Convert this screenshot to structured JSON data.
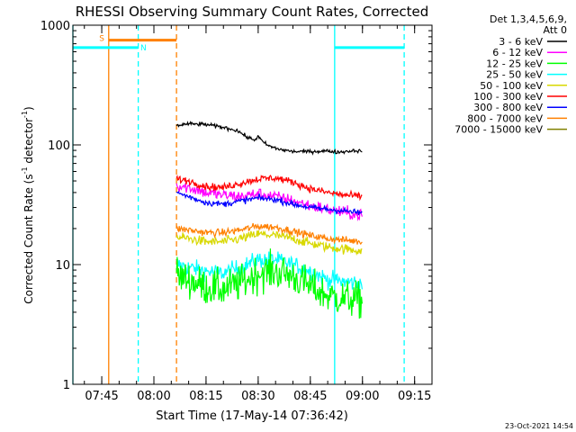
{
  "chart_data": {
    "type": "line",
    "title": "RHESSI Observing Summary Count Rates, Corrected",
    "xlabel": "Start Time (17-May-14 07:36:42)",
    "ylabel_parts": [
      "Corrected Count Rate (s",
      "-1",
      " detector",
      "-1",
      ")"
    ],
    "x_scale": "time",
    "x_range": [
      "07:36:42",
      "09:20:00"
    ],
    "x_ticks": [
      {
        "t": "07:45",
        "label": "07:45"
      },
      {
        "t": "08:00",
        "label": "08:00"
      },
      {
        "t": "08:15",
        "label": "08:15"
      },
      {
        "t": "08:30",
        "label": "08:30"
      },
      {
        "t": "08:45",
        "label": "08:45"
      },
      {
        "t": "09:00",
        "label": "09:00"
      },
      {
        "t": "09:15",
        "label": "09:15"
      }
    ],
    "y_scale": "log",
    "y_range": [
      1,
      1000
    ],
    "y_ticks": [
      {
        "v": 1,
        "label": "1"
      },
      {
        "v": 10,
        "label": "10"
      },
      {
        "v": 100,
        "label": "100"
      },
      {
        "v": 1000,
        "label": "1000"
      }
    ],
    "legend": {
      "placement": "top-right",
      "header": [
        "Det 1,3,4,5,6,9,",
        "Att 0"
      ],
      "entries": [
        {
          "label": "3 - 6 keV",
          "color": "#000000"
        },
        {
          "label": "6 - 12 keV",
          "color": "#ff00ff"
        },
        {
          "label": "12 - 25 keV",
          "color": "#00ff00"
        },
        {
          "label": "25 - 50 keV",
          "color": "#00ffff"
        },
        {
          "label": "50 - 100 keV",
          "color": "#d8d800"
        },
        {
          "label": "100 - 300 keV",
          "color": "#ff0000"
        },
        {
          "label": "300 - 800 keV",
          "color": "#0000ff"
        },
        {
          "label": "800 - 7000 keV",
          "color": "#ff8000"
        },
        {
          "label": "7000 - 15000 keV",
          "color": "#808000"
        }
      ]
    },
    "series": [
      {
        "name": "3 - 6 keV",
        "color": "#000000",
        "noise": 0.015,
        "points": [
          [
            "08:06:30",
            145
          ],
          [
            "08:10",
            150
          ],
          [
            "08:15",
            148
          ],
          [
            "08:20",
            140
          ],
          [
            "08:24",
            132
          ],
          [
            "08:27",
            115
          ],
          [
            "08:29",
            110
          ],
          [
            "08:30",
            118
          ],
          [
            "08:31",
            108
          ],
          [
            "08:33",
            98
          ],
          [
            "08:36",
            92
          ],
          [
            "08:40",
            88
          ],
          [
            "08:45",
            88
          ],
          [
            "08:50",
            89
          ],
          [
            "08:53",
            87
          ],
          [
            "08:55",
            88
          ],
          [
            "08:58",
            90
          ],
          [
            "09:00",
            88
          ]
        ]
      },
      {
        "name": "6 - 12 keV",
        "color": "#ff00ff",
        "noise": 0.05,
        "points": [
          [
            "08:06:30",
            46
          ],
          [
            "08:10",
            44
          ],
          [
            "08:15",
            40
          ],
          [
            "08:20",
            38
          ],
          [
            "08:25",
            37
          ],
          [
            "08:30",
            39
          ],
          [
            "08:35",
            37
          ],
          [
            "08:40",
            34
          ],
          [
            "08:45",
            31
          ],
          [
            "08:50",
            29
          ],
          [
            "08:55",
            27
          ],
          [
            "09:00",
            26
          ]
        ]
      },
      {
        "name": "12 - 25 keV",
        "color": "#00ff00",
        "noise": 0.15,
        "points": [
          [
            "08:06:30",
            8
          ],
          [
            "08:10",
            7.5
          ],
          [
            "08:15",
            6.5
          ],
          [
            "08:20",
            6.2
          ],
          [
            "08:25",
            7
          ],
          [
            "08:30",
            8.5
          ],
          [
            "08:35",
            8.8
          ],
          [
            "08:40",
            8
          ],
          [
            "08:45",
            6.5
          ],
          [
            "08:50",
            5.5
          ],
          [
            "08:55",
            5.2
          ],
          [
            "09:00",
            5
          ]
        ]
      },
      {
        "name": "25 - 50 keV",
        "color": "#00ffff",
        "noise": 0.07,
        "points": [
          [
            "08:06:30",
            10
          ],
          [
            "08:10",
            9.5
          ],
          [
            "08:15",
            8.8
          ],
          [
            "08:20",
            8.5
          ],
          [
            "08:25",
            9.5
          ],
          [
            "08:30",
            11
          ],
          [
            "08:35",
            11
          ],
          [
            "08:40",
            10
          ],
          [
            "08:45",
            8.8
          ],
          [
            "08:50",
            7.5
          ],
          [
            "08:55",
            7.2
          ],
          [
            "09:00",
            7
          ]
        ]
      },
      {
        "name": "50 - 100 keV",
        "color": "#d8d800",
        "noise": 0.04,
        "points": [
          [
            "08:06:30",
            17
          ],
          [
            "08:10",
            16.5
          ],
          [
            "08:15",
            15.5
          ],
          [
            "08:20",
            15.5
          ],
          [
            "08:25",
            16.5
          ],
          [
            "08:30",
            18
          ],
          [
            "08:35",
            17.5
          ],
          [
            "08:40",
            16.5
          ],
          [
            "08:45",
            15
          ],
          [
            "08:50",
            14
          ],
          [
            "08:55",
            13.5
          ],
          [
            "09:00",
            13
          ]
        ]
      },
      {
        "name": "100 - 300 keV",
        "color": "#ff0000",
        "noise": 0.03,
        "points": [
          [
            "08:06:30",
            52
          ],
          [
            "08:10",
            50
          ],
          [
            "08:15",
            45
          ],
          [
            "08:20",
            44
          ],
          [
            "08:25",
            48
          ],
          [
            "08:30",
            52
          ],
          [
            "08:35",
            53
          ],
          [
            "08:40",
            49
          ],
          [
            "08:45",
            43
          ],
          [
            "08:50",
            40
          ],
          [
            "08:55",
            38
          ],
          [
            "09:00",
            37
          ]
        ]
      },
      {
        "name": "300 - 800 keV",
        "color": "#0000ff",
        "noise": 0.025,
        "points": [
          [
            "08:06:30",
            40
          ],
          [
            "08:10",
            37
          ],
          [
            "08:15",
            33
          ],
          [
            "08:20",
            32
          ],
          [
            "08:25",
            34
          ],
          [
            "08:30",
            36
          ],
          [
            "08:35",
            35
          ],
          [
            "08:40",
            32
          ],
          [
            "08:45",
            30
          ],
          [
            "08:50",
            29
          ],
          [
            "08:55",
            28
          ],
          [
            "09:00",
            27
          ]
        ]
      },
      {
        "name": "800 - 7000 keV",
        "color": "#ff8000",
        "noise": 0.03,
        "points": [
          [
            "08:06:30",
            20
          ],
          [
            "08:10",
            19.5
          ],
          [
            "08:15",
            18.5
          ],
          [
            "08:20",
            18.5
          ],
          [
            "08:25",
            19.5
          ],
          [
            "08:30",
            21
          ],
          [
            "08:35",
            20.5
          ],
          [
            "08:40",
            19
          ],
          [
            "08:45",
            17.5
          ],
          [
            "08:50",
            16.5
          ],
          [
            "08:55",
            16
          ],
          [
            "09:00",
            15.5
          ]
        ]
      },
      {
        "name": "7000 - 15000 keV",
        "color": "#808000",
        "noise": 0.0,
        "points": []
      }
    ],
    "markers": [
      {
        "type": "vline",
        "t": "07:36:42",
        "color": "#00ffff",
        "style": "solid"
      },
      {
        "type": "vline",
        "t": "07:47",
        "color": "#ff8000",
        "style": "solid"
      },
      {
        "type": "vline",
        "t": "07:55:30",
        "color": "#00ffff",
        "style": "dashed"
      },
      {
        "type": "vline",
        "t": "08:06:30",
        "color": "#ff8000",
        "style": "dashed"
      },
      {
        "type": "vline",
        "t": "08:52",
        "color": "#00ffff",
        "style": "solid"
      },
      {
        "type": "vline",
        "t": "09:12",
        "color": "#00ffff",
        "style": "dashed"
      }
    ],
    "bars": [
      {
        "t0": "07:36:42",
        "t1": "07:55:30",
        "y": 650,
        "color": "#00ffff"
      },
      {
        "t0": "07:47",
        "t1": "08:06:30",
        "y": 750,
        "color": "#ff8000"
      },
      {
        "t0": "08:52",
        "t1": "09:12",
        "y": 650,
        "color": "#00ffff"
      }
    ],
    "flags": [
      {
        "t": "07:45",
        "y": 780,
        "text": "S",
        "color": "#ff8000"
      },
      {
        "t": "07:57",
        "y": 650,
        "text": "N",
        "color": "#00ffff"
      }
    ],
    "grid": false
  },
  "footer": {
    "timestamp": "23-Oct-2021 14:54"
  }
}
